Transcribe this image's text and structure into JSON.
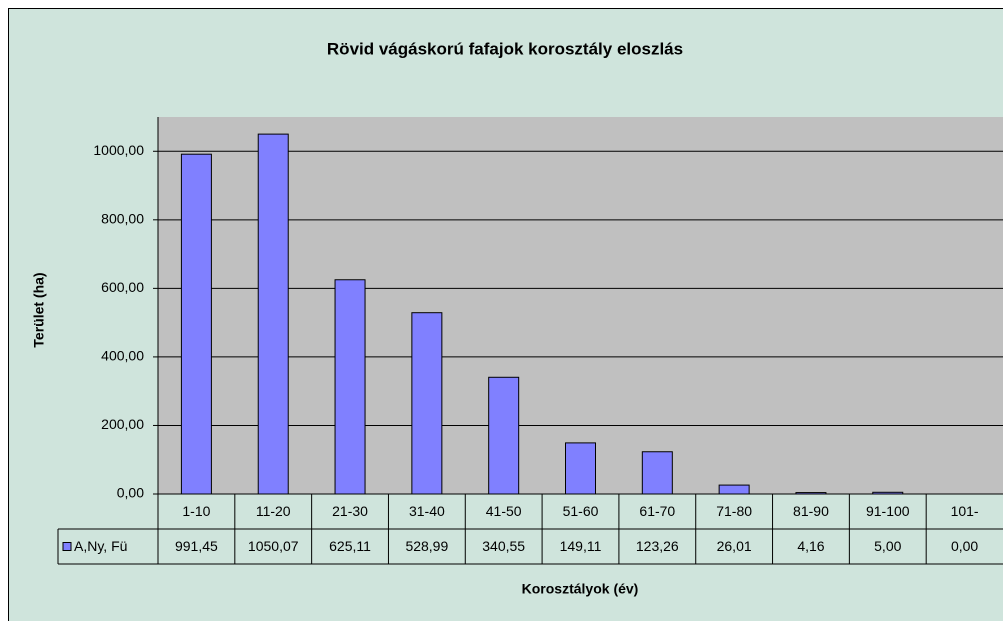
{
  "chart_data": {
    "type": "bar",
    "title": "Rövid vágáskorú fafajok korosztály eloszlás",
    "x_label": "Korosztályok (év)",
    "y_label": "Terület (ha)",
    "categories": [
      "1-10",
      "11-20",
      "21-30",
      "31-40",
      "41-50",
      "51-60",
      "61-70",
      "71-80",
      "81-90",
      "91-100",
      "101-"
    ],
    "series": [
      {
        "name": "A,Ny, Fü",
        "color": "#8080ff",
        "values": [
          991.45,
          1050.07,
          625.11,
          528.99,
          340.55,
          149.11,
          123.26,
          26.01,
          4.16,
          5.0,
          0.0
        ],
        "value_labels": [
          "991,45",
          "1050,07",
          "625,11",
          "528,99",
          "340,55",
          "149,11",
          "123,26",
          "26,01",
          "4,16",
          "5,00",
          "0,00"
        ]
      }
    ],
    "ylim": [
      0,
      1100
    ],
    "yticks": [
      {
        "value": 0,
        "label": "0,00"
      },
      {
        "value": 200,
        "label": "200,00"
      },
      {
        "value": 400,
        "label": "400,00"
      },
      {
        "value": 600,
        "label": "600,00"
      },
      {
        "value": 800,
        "label": "800,00"
      },
      {
        "value": 1000,
        "label": "1000,00"
      }
    ],
    "grid": true
  }
}
